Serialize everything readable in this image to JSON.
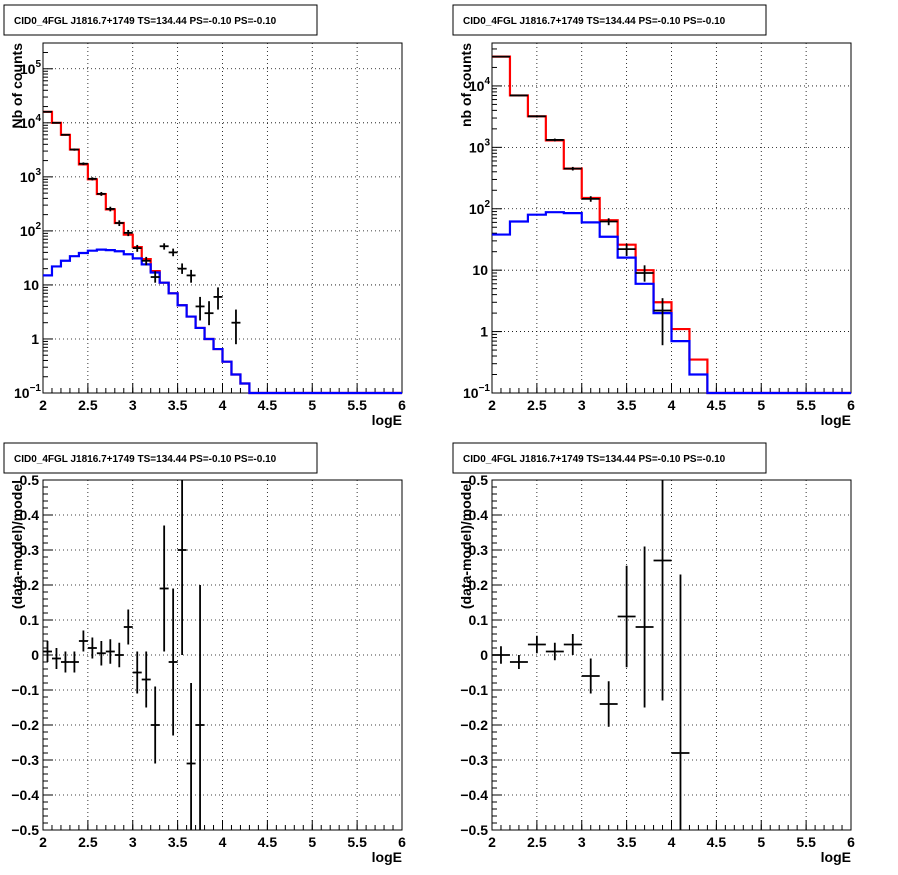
{
  "chart_data": [
    {
      "type": "histogram",
      "title": "CID0_4FGL J1816.7+1749 TS=134.44 PS=-0.10 PS=-0.10",
      "xlabel": "logE",
      "ylabel": "Nb of counts",
      "xlim": [
        2,
        6
      ],
      "ylim": [
        0.1,
        300000
      ],
      "yscale": "log",
      "grid": true,
      "x_ticks": [
        "2",
        "2.5",
        "3",
        "3.5",
        "4",
        "4.5",
        "5",
        "5.5",
        "6"
      ],
      "y_ticks": [
        {
          "value": 0.1,
          "base": "10",
          "exp": "−1"
        },
        {
          "value": 1,
          "label": "1"
        },
        {
          "value": 10,
          "label": "10"
        },
        {
          "value": 100,
          "base": "10",
          "exp": "2"
        },
        {
          "value": 1000,
          "base": "10",
          "exp": "3"
        },
        {
          "value": 10000,
          "base": "10",
          "exp": "4"
        },
        {
          "value": 100000,
          "base": "10",
          "exp": "5"
        }
      ],
      "bin_width": 0.1,
      "bin_edges_start": 2.0,
      "series": [
        {
          "color": "#ff0000",
          "values": [
            16000,
            10000,
            6000,
            3200,
            1700,
            900,
            480,
            250,
            140,
            85,
            50,
            30,
            18,
            11,
            7,
            4.2,
            2.6,
            1.6,
            1.0,
            0.65,
            0.38,
            0.22,
            0.15,
            0.1,
            0.1,
            0.1,
            0.1,
            0.1,
            0.1,
            0.1,
            0.1,
            0.1,
            0.1,
            0.1,
            0.1,
            0.1,
            0.1,
            0.1,
            0.1,
            0.1
          ]
        },
        {
          "color": "#0000ff",
          "values": [
            15,
            22,
            28,
            34,
            39,
            43,
            45,
            44,
            42,
            37,
            31,
            24,
            17,
            11,
            7,
            4.2,
            2.6,
            1.6,
            1.0,
            0.65,
            0.38,
            0.22,
            0.15,
            0.1,
            0.1,
            0.1,
            0.1,
            0.1,
            0.1,
            0.1,
            0.1,
            0.1,
            0.1,
            0.1,
            0.1,
            0.1,
            0.1,
            0.1,
            0.1,
            0.1
          ]
        }
      ],
      "points": [
        {
          "x": 2.05,
          "y": 16000,
          "ylo": 15500,
          "yhi": 16500
        },
        {
          "x": 2.15,
          "y": 10000,
          "ylo": 9700,
          "yhi": 10300
        },
        {
          "x": 2.25,
          "y": 6000,
          "ylo": 5800,
          "yhi": 6200
        },
        {
          "x": 2.35,
          "y": 3200,
          "ylo": 3050,
          "yhi": 3350
        },
        {
          "x": 2.45,
          "y": 1750,
          "ylo": 1650,
          "yhi": 1850
        },
        {
          "x": 2.55,
          "y": 920,
          "ylo": 860,
          "yhi": 980
        },
        {
          "x": 2.65,
          "y": 485,
          "ylo": 445,
          "yhi": 525
        },
        {
          "x": 2.75,
          "y": 255,
          "ylo": 230,
          "yhi": 280
        },
        {
          "x": 2.85,
          "y": 140,
          "ylo": 123,
          "yhi": 157
        },
        {
          "x": 2.95,
          "y": 92,
          "ylo": 80,
          "yhi": 104
        },
        {
          "x": 3.05,
          "y": 48,
          "ylo": 41,
          "yhi": 55
        },
        {
          "x": 3.15,
          "y": 28,
          "ylo": 23,
          "yhi": 33
        },
        {
          "x": 3.25,
          "y": 14,
          "ylo": 11,
          "yhi": 18
        },
        {
          "x": 3.35,
          "y": 52,
          "ylo": 45,
          "yhi": 59
        },
        {
          "x": 3.45,
          "y": 40,
          "ylo": 34,
          "yhi": 47
        },
        {
          "x": 3.55,
          "y": 20,
          "ylo": 16,
          "yhi": 25
        },
        {
          "x": 3.65,
          "y": 15,
          "ylo": 11,
          "yhi": 19
        },
        {
          "x": 3.75,
          "y": 4,
          "ylo": 2.2,
          "yhi": 6
        },
        {
          "x": 3.85,
          "y": 3,
          "ylo": 1.8,
          "yhi": 5
        },
        {
          "x": 3.95,
          "y": 6,
          "ylo": 3.5,
          "yhi": 9
        },
        {
          "x": 4.15,
          "y": 2,
          "ylo": 0.8,
          "yhi": 3.5
        }
      ]
    },
    {
      "type": "histogram",
      "title": "CID0_4FGL J1816.7+1749 TS=134.44 PS=-0.10 PS=-0.10",
      "xlabel": "logE",
      "ylabel": "nb of counts",
      "xlim": [
        2,
        6
      ],
      "ylim": [
        0.1,
        50000
      ],
      "yscale": "log",
      "grid": true,
      "x_ticks": [
        "2",
        "2.5",
        "3",
        "3.5",
        "4",
        "4.5",
        "5",
        "5.5",
        "6"
      ],
      "y_ticks": [
        {
          "value": 0.1,
          "base": "10",
          "exp": "−1"
        },
        {
          "value": 1,
          "label": "1"
        },
        {
          "value": 10,
          "label": "10"
        },
        {
          "value": 100,
          "base": "10",
          "exp": "2"
        },
        {
          "value": 1000,
          "base": "10",
          "exp": "3"
        },
        {
          "value": 10000,
          "base": "10",
          "exp": "4"
        }
      ],
      "bin_width": 0.2,
      "bin_edges_start": 2.0,
      "series": [
        {
          "color": "#ff0000",
          "values": [
            30000,
            7000,
            3200,
            1300,
            450,
            150,
            65,
            26,
            10,
            3,
            1.1,
            0.35,
            0.1,
            0.1,
            0.1,
            0.1,
            0.1,
            0.1,
            0.1,
            0.1
          ]
        },
        {
          "color": "#0000ff",
          "values": [
            38,
            62,
            80,
            88,
            85,
            60,
            35,
            16,
            6,
            2,
            0.7,
            0.2,
            0.1,
            0.1,
            0.1,
            0.1,
            0.1,
            0.1,
            0.1,
            0.1
          ]
        }
      ],
      "points": [
        {
          "x": 2.1,
          "y": 30000,
          "ylo": 29500,
          "yhi": 30500
        },
        {
          "x": 2.3,
          "y": 7000,
          "ylo": 6800,
          "yhi": 7200
        },
        {
          "x": 2.5,
          "y": 3200,
          "ylo": 3080,
          "yhi": 3320
        },
        {
          "x": 2.7,
          "y": 1320,
          "ylo": 1250,
          "yhi": 1390
        },
        {
          "x": 2.9,
          "y": 450,
          "ylo": 420,
          "yhi": 480
        },
        {
          "x": 3.1,
          "y": 145,
          "ylo": 130,
          "yhi": 160
        },
        {
          "x": 3.3,
          "y": 62,
          "ylo": 54,
          "yhi": 70
        },
        {
          "x": 3.5,
          "y": 22,
          "ylo": 17,
          "yhi": 27
        },
        {
          "x": 3.7,
          "y": 9,
          "ylo": 6.5,
          "yhi": 12
        },
        {
          "x": 3.9,
          "y": 2.2,
          "ylo": 0.6,
          "yhi": 3.5
        }
      ]
    },
    {
      "type": "scatter",
      "title": "CID0_4FGL J1816.7+1749 TS=134.44 PS=-0.10 PS=-0.10",
      "xlabel": "logE",
      "ylabel": "(data-model)/model",
      "xlim": [
        2,
        6
      ],
      "ylim": [
        -0.5,
        0.5
      ],
      "yscale": "linear",
      "grid": true,
      "x_ticks": [
        "2",
        "2.5",
        "3",
        "3.5",
        "4",
        "4.5",
        "5",
        "5.5",
        "6"
      ],
      "y_ticks": [
        {
          "value": -0.5,
          "label": "−0.5"
        },
        {
          "value": -0.4,
          "label": "−0.4"
        },
        {
          "value": -0.3,
          "label": "−0.3"
        },
        {
          "value": -0.2,
          "label": "−0.2"
        },
        {
          "value": -0.1,
          "label": "−0.1"
        },
        {
          "value": 0,
          "label": "0"
        },
        {
          "value": 0.1,
          "label": "0.1"
        },
        {
          "value": 0.2,
          "label": "0.2"
        },
        {
          "value": 0.3,
          "label": "0.3"
        },
        {
          "value": 0.4,
          "label": "0.4"
        },
        {
          "value": 0.5,
          "label": "0.5"
        }
      ],
      "xerr": 0.05,
      "points": [
        {
          "x": 2.05,
          "y": 0.01,
          "err": 0.03
        },
        {
          "x": 2.15,
          "y": -0.01,
          "err": 0.03
        },
        {
          "x": 2.25,
          "y": -0.02,
          "err": 0.03
        },
        {
          "x": 2.35,
          "y": -0.02,
          "err": 0.03
        },
        {
          "x": 2.45,
          "y": 0.04,
          "err": 0.03
        },
        {
          "x": 2.55,
          "y": 0.02,
          "err": 0.03
        },
        {
          "x": 2.65,
          "y": 0.005,
          "err": 0.035
        },
        {
          "x": 2.75,
          "y": 0.01,
          "err": 0.035
        },
        {
          "x": 2.85,
          "y": 0.0,
          "err": 0.035
        },
        {
          "x": 2.95,
          "y": 0.08,
          "err": 0.05
        },
        {
          "x": 3.05,
          "y": -0.05,
          "err": 0.06
        },
        {
          "x": 3.15,
          "y": -0.07,
          "err": 0.08
        },
        {
          "x": 3.25,
          "y": -0.2,
          "err": 0.11
        },
        {
          "x": 3.35,
          "y": 0.19,
          "err": 0.18
        },
        {
          "x": 3.45,
          "y": -0.02,
          "err": 0.21
        },
        {
          "x": 3.55,
          "y": 0.3,
          "err": 0.3
        },
        {
          "x": 3.65,
          "y": -0.31,
          "err": 0.23
        },
        {
          "x": 3.75,
          "y": -0.2,
          "err": 0.4
        }
      ]
    },
    {
      "type": "scatter",
      "title": "CID0_4FGL J1816.7+1749 TS=134.44 PS=-0.10 PS=-0.10",
      "xlabel": "logE",
      "ylabel": "(data-model)/model",
      "xlim": [
        2,
        6
      ],
      "ylim": [
        -0.5,
        0.5
      ],
      "yscale": "linear",
      "grid": true,
      "x_ticks": [
        "2",
        "2.5",
        "3",
        "3.5",
        "4",
        "4.5",
        "5",
        "5.5",
        "6"
      ],
      "y_ticks": [
        {
          "value": -0.5,
          "label": "−0.5"
        },
        {
          "value": -0.4,
          "label": "−0.4"
        },
        {
          "value": -0.3,
          "label": "−0.3"
        },
        {
          "value": -0.2,
          "label": "−0.2"
        },
        {
          "value": -0.1,
          "label": "−0.1"
        },
        {
          "value": 0,
          "label": "0"
        },
        {
          "value": 0.1,
          "label": "0.1"
        },
        {
          "value": 0.2,
          "label": "0.2"
        },
        {
          "value": 0.3,
          "label": "0.3"
        },
        {
          "value": 0.4,
          "label": "0.4"
        },
        {
          "value": 0.5,
          "label": "0.5"
        }
      ],
      "xerr": 0.1,
      "points": [
        {
          "x": 2.1,
          "y": 0.0,
          "err": 0.025
        },
        {
          "x": 2.3,
          "y": -0.02,
          "err": 0.02
        },
        {
          "x": 2.5,
          "y": 0.03,
          "err": 0.025
        },
        {
          "x": 2.7,
          "y": 0.01,
          "err": 0.025
        },
        {
          "x": 2.9,
          "y": 0.03,
          "err": 0.03
        },
        {
          "x": 3.1,
          "y": -0.06,
          "err": 0.05
        },
        {
          "x": 3.3,
          "y": -0.14,
          "err": 0.065
        },
        {
          "x": 3.5,
          "y": 0.11,
          "err": 0.145
        },
        {
          "x": 3.7,
          "y": 0.08,
          "err": 0.23
        },
        {
          "x": 3.9,
          "y": 0.27,
          "err": 0.4
        },
        {
          "x": 4.1,
          "y": -0.28,
          "err": 0.51
        }
      ]
    }
  ]
}
